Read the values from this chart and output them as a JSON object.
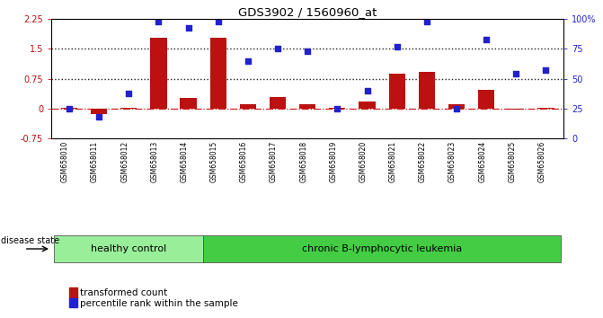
{
  "title": "GDS3902 / 1560960_at",
  "samples": [
    "GSM658010",
    "GSM658011",
    "GSM658012",
    "GSM658013",
    "GSM658014",
    "GSM658015",
    "GSM658016",
    "GSM658017",
    "GSM658018",
    "GSM658019",
    "GSM658020",
    "GSM658021",
    "GSM658022",
    "GSM658023",
    "GSM658024",
    "GSM658025",
    "GSM658026"
  ],
  "bar_values": [
    0.02,
    -0.15,
    0.01,
    1.78,
    0.27,
    1.78,
    0.1,
    0.28,
    0.1,
    0.01,
    0.17,
    0.87,
    0.93,
    0.11,
    0.47,
    -0.02,
    0.02
  ],
  "dot_values": [
    25,
    18,
    38,
    98,
    93,
    98,
    65,
    75,
    73,
    25,
    40,
    77,
    98,
    25,
    83,
    54,
    57
  ],
  "bar_color": "#bb1111",
  "dot_color": "#2222cc",
  "ylim_left": [
    -0.75,
    2.25
  ],
  "ylim_right": [
    0,
    100
  ],
  "yticks_left": [
    -0.75,
    0,
    0.75,
    1.5,
    2.25
  ],
  "yticks_right": [
    0,
    25,
    50,
    75,
    100
  ],
  "hlines": [
    0.75,
    1.5
  ],
  "healthy_count": 5,
  "healthy_label": "healthy control",
  "leukemia_label": "chronic B-lymphocytic leukemia",
  "healthy_color": "#99ee99",
  "leukemia_color": "#44cc44",
  "disease_state_label": "disease state",
  "legend_bar": "transformed count",
  "legend_dot": "percentile rank within the sample",
  "background_color": "#ffffff",
  "dotted_line_color": "#222222",
  "zero_line_color": "#cc2222",
  "bar_color_left": "#cc2222",
  "dot_color_right": "#2222cc"
}
